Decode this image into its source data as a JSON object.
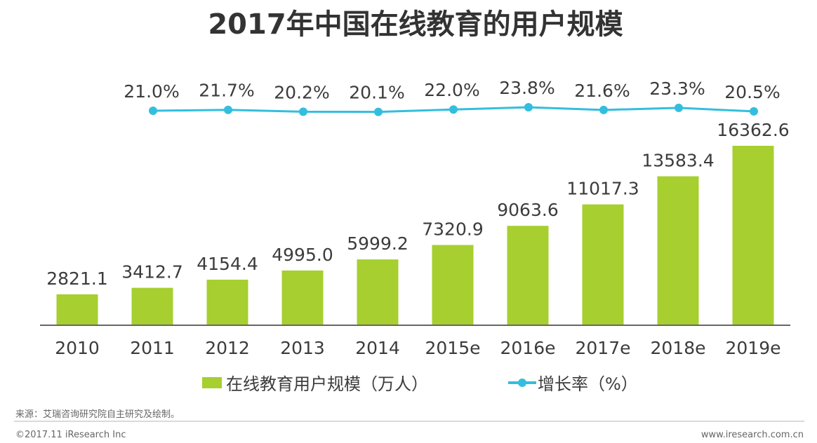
{
  "header": {
    "title": "2017年中国在线教育的用户规模"
  },
  "chart_data": {
    "type": "bar",
    "categories": [
      "2010",
      "2011",
      "2012",
      "2013",
      "2014",
      "2015e",
      "2016e",
      "2017e",
      "2018e",
      "2019e"
    ],
    "series": [
      {
        "name": "在线教育用户规模（万人）",
        "type": "bar",
        "values": [
          2821.1,
          3412.7,
          4154.4,
          4995.0,
          5999.2,
          7320.9,
          9063.6,
          11017.3,
          13583.4,
          16362.6
        ],
        "labels": [
          "2821.1",
          "3412.7",
          "4154.4",
          "4995.0",
          "5999.2",
          "7320.9",
          "9063.6",
          "11017.3",
          "13583.4",
          "16362.6"
        ]
      },
      {
        "name": "增长率（%）",
        "type": "line",
        "x": [
          "2011",
          "2012",
          "2013",
          "2014",
          "2015e",
          "2016e",
          "2017e",
          "2018e",
          "2019e"
        ],
        "values": [
          21.0,
          21.7,
          20.2,
          20.1,
          22.0,
          23.8,
          21.6,
          23.3,
          20.5
        ],
        "labels": [
          "21.0%",
          "21.7%",
          "20.2%",
          "20.1%",
          "22.0%",
          "23.8%",
          "21.6%",
          "23.3%",
          "20.5%"
        ]
      }
    ],
    "title": "2017年中国在线教育的用户规模",
    "xlabel": "",
    "ylabel": "",
    "ylim": [
      0,
      16362.6
    ],
    "grid": false,
    "legend_position": "bottom",
    "colors": {
      "bar": "#a6cf2f",
      "line": "#33bede",
      "axis": "#666666"
    }
  },
  "footer": {
    "source": "来源：艾瑞咨询研究院自主研究及绘制。",
    "copyright": "©2017.11 iResearch Inc",
    "website": "www.iresearch.com.cn"
  }
}
